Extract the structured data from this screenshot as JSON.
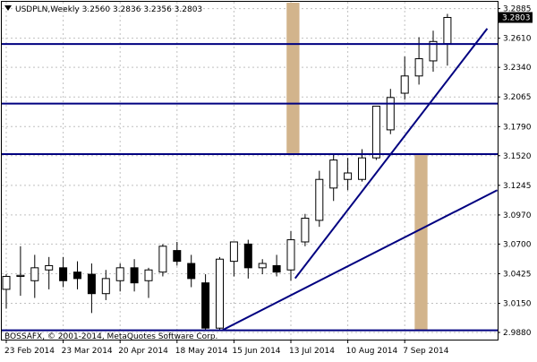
{
  "chart_data": {
    "type": "candlestick",
    "symbol": "USDPLN",
    "timeframe": "Weekly",
    "header_text": "USDPLN,Weekly  3.2560 3.2836 3.2356 3.2803",
    "ohlc_last": {
      "open": 3.256,
      "high": 3.2836,
      "low": 3.2356,
      "close": 3.2803
    },
    "current_price_label": "3.2803",
    "copyright": "BOSSAFX, © 2001-2014, MetaQuotes Software Corp.",
    "ylim": [
      2.988,
      3.294
    ],
    "y_ticks": [
      "3.2885",
      "3.2610",
      "3.2340",
      "3.2065",
      "3.1790",
      "3.1520",
      "3.1245",
      "3.0970",
      "3.0700",
      "3.0425",
      "3.0150",
      "2.9880"
    ],
    "x_ticks": [
      "23 Feb 2014",
      "23 Mar 2014",
      "20 Apr 2014",
      "18 May 2014",
      "15 Jun 2014",
      "13 Jul 2014",
      "10 Aug 2014",
      "7 Sep 2014"
    ],
    "x_tick_bars": [
      0,
      4,
      8,
      12,
      16,
      20,
      24,
      28
    ],
    "candles": [
      {
        "o": 3.028,
        "h": 3.042,
        "l": 3.01,
        "c": 3.04
      },
      {
        "o": 3.04,
        "h": 3.068,
        "l": 3.022,
        "c": 3.041
      },
      {
        "o": 3.036,
        "h": 3.06,
        "l": 3.02,
        "c": 3.048
      },
      {
        "o": 3.046,
        "h": 3.058,
        "l": 3.028,
        "c": 3.05
      },
      {
        "o": 3.048,
        "h": 3.058,
        "l": 3.03,
        "c": 3.036
      },
      {
        "o": 3.044,
        "h": 3.054,
        "l": 3.028,
        "c": 3.038
      },
      {
        "o": 3.042,
        "h": 3.052,
        "l": 3.006,
        "c": 3.024
      },
      {
        "o": 3.024,
        "h": 3.046,
        "l": 3.018,
        "c": 3.038
      },
      {
        "o": 3.036,
        "h": 3.052,
        "l": 3.026,
        "c": 3.048
      },
      {
        "o": 3.048,
        "h": 3.056,
        "l": 3.026,
        "c": 3.034
      },
      {
        "o": 3.036,
        "h": 3.048,
        "l": 3.02,
        "c": 3.046
      },
      {
        "o": 3.044,
        "h": 3.07,
        "l": 3.04,
        "c": 3.068
      },
      {
        "o": 3.064,
        "h": 3.072,
        "l": 3.05,
        "c": 3.054
      },
      {
        "o": 3.052,
        "h": 3.06,
        "l": 3.03,
        "c": 3.038
      },
      {
        "o": 3.034,
        "h": 3.042,
        "l": 2.99,
        "c": 2.992
      },
      {
        "o": 2.992,
        "h": 3.058,
        "l": 2.99,
        "c": 3.056
      },
      {
        "o": 3.054,
        "h": 3.072,
        "l": 3.04,
        "c": 3.072
      },
      {
        "o": 3.07,
        "h": 3.074,
        "l": 3.038,
        "c": 3.048
      },
      {
        "o": 3.048,
        "h": 3.056,
        "l": 3.042,
        "c": 3.052
      },
      {
        "o": 3.05,
        "h": 3.06,
        "l": 3.04,
        "c": 3.044
      },
      {
        "o": 3.046,
        "h": 3.082,
        "l": 3.036,
        "c": 3.074
      },
      {
        "o": 3.072,
        "h": 3.098,
        "l": 3.068,
        "c": 3.094
      },
      {
        "o": 3.092,
        "h": 3.138,
        "l": 3.086,
        "c": 3.13
      },
      {
        "o": 3.122,
        "h": 3.154,
        "l": 3.11,
        "c": 3.148
      },
      {
        "o": 3.13,
        "h": 3.15,
        "l": 3.12,
        "c": 3.136
      },
      {
        "o": 3.13,
        "h": 3.158,
        "l": 3.128,
        "c": 3.15
      },
      {
        "o": 3.15,
        "h": 3.198,
        "l": 3.148,
        "c": 3.198
      },
      {
        "o": 3.176,
        "h": 3.214,
        "l": 3.172,
        "c": 3.206
      },
      {
        "o": 3.21,
        "h": 3.244,
        "l": 3.204,
        "c": 3.226
      },
      {
        "o": 3.226,
        "h": 3.262,
        "l": 3.218,
        "c": 3.242
      },
      {
        "o": 3.24,
        "h": 3.268,
        "l": 3.23,
        "c": 3.258
      },
      {
        "o": 3.256,
        "h": 3.2836,
        "l": 3.2356,
        "c": 3.2803
      }
    ],
    "horizontal_lines": [
      3.2556,
      3.2004,
      3.1535,
      2.99
    ],
    "trendlines": [
      {
        "from": {
          "bar": 20.3,
          "price": 3.0382
        },
        "to": {
          "bar": 33.8,
          "price": 3.27
        }
      },
      {
        "from": {
          "bar": 15.2,
          "price": 2.9902
        },
        "to": {
          "bar": 34.5,
          "price": 3.12
        }
      }
    ],
    "vertical_bands": [
      {
        "bar_from": 19.7,
        "bar_to": 20.6,
        "price_top": 3.294,
        "price_bottom": 3.1535
      },
      {
        "bar_from": 28.7,
        "bar_to": 29.6,
        "price_top": 3.1535,
        "price_bottom": 2.99
      }
    ],
    "colors": {
      "background": "#ffffff",
      "grid": "#c0c0c0",
      "bull_body": "#ffffff",
      "bear_body": "#000000",
      "wick": "#000000",
      "level_line": "#000080",
      "band": "#d2b48c"
    },
    "grid": true
  }
}
